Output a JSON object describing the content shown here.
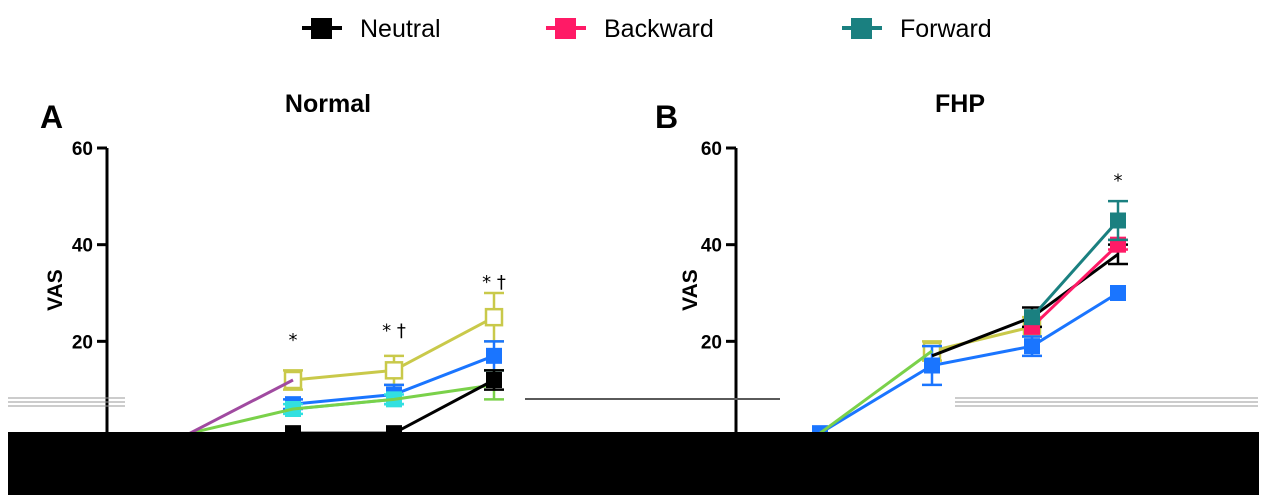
{
  "legend": [
    {
      "label": "Neutral",
      "color": "#000000",
      "marker": "square"
    },
    {
      "label": "Backward",
      "color": "#ff1a66",
      "marker": "square"
    },
    {
      "label": "Forward",
      "color": "#1a8080",
      "marker": "square"
    }
  ],
  "chart_data": [
    {
      "type": "line",
      "panel_letter": "A",
      "title": "Normal",
      "ylabel": "VAS",
      "yticks": [
        20,
        40,
        60
      ],
      "ylim": [
        0,
        60
      ],
      "x": [
        1,
        2,
        3,
        4
      ],
      "series": [
        {
          "name": "",
          "color": "#c9c94a",
          "marker": "open-square",
          "values": [
            null,
            12,
            14,
            25
          ],
          "errors": [
            null,
            2,
            3,
            5
          ]
        },
        {
          "name": "",
          "color": "#1a75ff",
          "marker": "square",
          "values": [
            null,
            7,
            9,
            17
          ],
          "errors": [
            null,
            1,
            2,
            3
          ]
        },
        {
          "name": "",
          "color": "#32e0e0",
          "marker": "square",
          "values": [
            null,
            6,
            8,
            null
          ],
          "errors": [
            null,
            1,
            1,
            null
          ]
        },
        {
          "name": "",
          "color": "#7ad14a",
          "marker": "none",
          "values": [
            1,
            6,
            8,
            11
          ],
          "errors": [
            null,
            null,
            null,
            3
          ]
        },
        {
          "name": "",
          "color": "#a04aa0",
          "marker": "none",
          "values": [
            1,
            12,
            null,
            null
          ],
          "errors": [
            null,
            null,
            null,
            null
          ]
        },
        {
          "name": "Neutral",
          "color": "#000000",
          "marker": "square",
          "values": [
            null,
            1,
            1,
            12
          ],
          "errors": [
            null,
            null,
            null,
            2
          ]
        }
      ],
      "annotations": [
        {
          "x": 2,
          "y": 19,
          "text": "*"
        },
        {
          "x": 3,
          "y": 21,
          "text": "* †"
        },
        {
          "x": 4,
          "y": 31,
          "text": "* †"
        }
      ]
    },
    {
      "type": "line",
      "panel_letter": "B",
      "title": "FHP",
      "ylabel": "VAS",
      "yticks": [
        20,
        40,
        60
      ],
      "ylim": [
        0,
        60
      ],
      "x": [
        1,
        2,
        3,
        4
      ],
      "series": [
        {
          "name": "",
          "color": "#c9c94a",
          "marker": "open-square",
          "values": [
            null,
            18,
            23,
            null
          ],
          "errors": [
            null,
            2,
            2,
            null
          ]
        },
        {
          "name": "",
          "color": "#1a75ff",
          "marker": "square",
          "values": [
            1,
            15,
            19,
            30
          ],
          "errors": [
            null,
            4,
            2,
            null
          ]
        },
        {
          "name": "",
          "color": "#7ad14a",
          "marker": "none",
          "values": [
            1,
            18,
            null,
            null
          ],
          "errors": [
            null,
            null,
            null,
            null
          ]
        },
        {
          "name": "Neutral",
          "color": "#000000",
          "marker": "none",
          "values": [
            null,
            17,
            25,
            38
          ],
          "errors": [
            null,
            null,
            2,
            2
          ]
        },
        {
          "name": "Backward",
          "color": "#ff1a66",
          "marker": "square",
          "values": [
            null,
            null,
            23,
            40
          ],
          "errors": [
            null,
            null,
            null,
            1
          ]
        },
        {
          "name": "Forward",
          "color": "#1a8080",
          "marker": "square",
          "values": [
            null,
            null,
            25,
            45
          ],
          "errors": [
            null,
            null,
            null,
            4
          ]
        }
      ],
      "annotations": [
        {
          "x": 4,
          "y": 52,
          "text": "*"
        }
      ]
    }
  ]
}
